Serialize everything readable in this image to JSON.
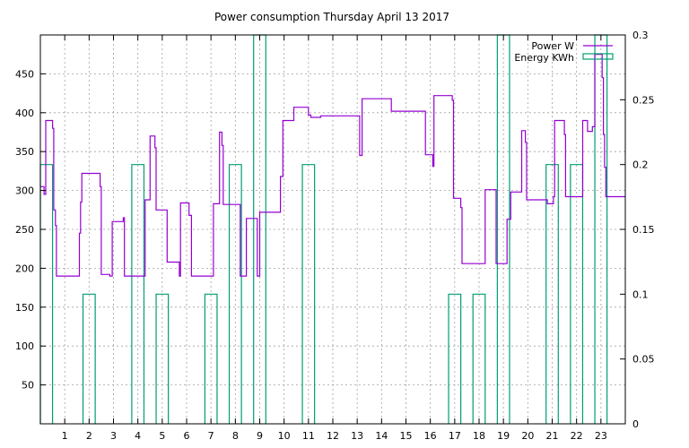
{
  "chart_data": {
    "type": "line",
    "title": "Power consumption Thursday April 13 2017",
    "xlabel": "",
    "ylabel": "",
    "x_ticks": [
      "1",
      "2",
      "3",
      "4",
      "5",
      "6",
      "7",
      "8",
      "9",
      "10",
      "11",
      "12",
      "13",
      "14",
      "15",
      "16",
      "17",
      "18",
      "19",
      "20",
      "21",
      "22",
      "23"
    ],
    "xlim": [
      0,
      24
    ],
    "ylim": [
      0,
      500
    ],
    "y_ticks": [
      50,
      100,
      150,
      200,
      250,
      300,
      350,
      400,
      450
    ],
    "y2lim": [
      0,
      0.3
    ],
    "y2_ticks": [
      "0",
      "0.05",
      "0.1",
      "0.15",
      "0.2",
      "0.25",
      "0.3"
    ],
    "grid": true,
    "legend_position": "top-right",
    "colors": {
      "power": "#9400d3",
      "energy": "#009e73"
    },
    "series": [
      {
        "name": "Power W",
        "axis": "left",
        "style": "line",
        "points": [
          [
            0.0,
            305
          ],
          [
            0.15,
            305
          ],
          [
            0.15,
            295
          ],
          [
            0.22,
            295
          ],
          [
            0.22,
            390
          ],
          [
            0.5,
            390
          ],
          [
            0.5,
            380
          ],
          [
            0.55,
            380
          ],
          [
            0.55,
            275
          ],
          [
            0.62,
            275
          ],
          [
            0.62,
            255
          ],
          [
            0.66,
            255
          ],
          [
            0.66,
            190
          ],
          [
            1.6,
            190
          ],
          [
            1.6,
            245
          ],
          [
            1.65,
            245
          ],
          [
            1.65,
            285
          ],
          [
            1.7,
            285
          ],
          [
            1.7,
            322
          ],
          [
            2.45,
            322
          ],
          [
            2.45,
            305
          ],
          [
            2.5,
            305
          ],
          [
            2.5,
            192
          ],
          [
            2.85,
            192
          ],
          [
            2.85,
            190
          ],
          [
            2.95,
            190
          ],
          [
            2.95,
            260
          ],
          [
            3.4,
            260
          ],
          [
            3.4,
            265
          ],
          [
            3.45,
            265
          ],
          [
            3.45,
            190
          ],
          [
            4.3,
            190
          ],
          [
            4.3,
            288
          ],
          [
            4.5,
            288
          ],
          [
            4.5,
            370
          ],
          [
            4.7,
            370
          ],
          [
            4.7,
            355
          ],
          [
            4.75,
            355
          ],
          [
            4.75,
            275
          ],
          [
            5.2,
            275
          ],
          [
            5.2,
            208
          ],
          [
            5.7,
            208
          ],
          [
            5.7,
            190
          ],
          [
            5.75,
            190
          ],
          [
            5.75,
            284
          ],
          [
            6.1,
            284
          ],
          [
            6.1,
            268
          ],
          [
            6.2,
            268
          ],
          [
            6.2,
            190
          ],
          [
            7.1,
            190
          ],
          [
            7.1,
            283
          ],
          [
            7.35,
            283
          ],
          [
            7.35,
            375
          ],
          [
            7.45,
            375
          ],
          [
            7.45,
            358
          ],
          [
            7.5,
            358
          ],
          [
            7.5,
            282
          ],
          [
            8.2,
            282
          ],
          [
            8.2,
            190
          ],
          [
            8.45,
            190
          ],
          [
            8.45,
            264
          ],
          [
            8.9,
            264
          ],
          [
            8.9,
            190
          ],
          [
            9.0,
            190
          ],
          [
            9.0,
            272
          ],
          [
            9.85,
            272
          ],
          [
            9.85,
            318
          ],
          [
            9.95,
            318
          ],
          [
            9.95,
            390
          ],
          [
            10.4,
            390
          ],
          [
            10.4,
            407
          ],
          [
            11.0,
            407
          ],
          [
            11.0,
            397
          ],
          [
            11.1,
            397
          ],
          [
            11.1,
            394
          ],
          [
            11.5,
            394
          ],
          [
            11.5,
            396
          ],
          [
            13.1,
            396
          ],
          [
            13.1,
            345
          ],
          [
            13.2,
            345
          ],
          [
            13.2,
            418
          ],
          [
            14.4,
            418
          ],
          [
            14.4,
            402
          ],
          [
            15.8,
            402
          ],
          [
            15.8,
            346
          ],
          [
            16.1,
            346
          ],
          [
            16.1,
            331
          ],
          [
            16.15,
            331
          ],
          [
            16.15,
            422
          ],
          [
            16.9,
            422
          ],
          [
            16.9,
            416
          ],
          [
            16.95,
            416
          ],
          [
            16.95,
            290
          ],
          [
            17.25,
            290
          ],
          [
            17.25,
            278
          ],
          [
            17.3,
            278
          ],
          [
            17.3,
            206
          ],
          [
            18.25,
            206
          ],
          [
            18.25,
            301
          ],
          [
            18.7,
            301
          ],
          [
            18.7,
            206
          ],
          [
            19.15,
            206
          ],
          [
            19.15,
            263
          ],
          [
            19.3,
            263
          ],
          [
            19.3,
            298
          ],
          [
            19.75,
            298
          ],
          [
            19.75,
            377
          ],
          [
            19.9,
            377
          ],
          [
            19.9,
            362
          ],
          [
            19.95,
            362
          ],
          [
            19.95,
            288
          ],
          [
            20.8,
            288
          ],
          [
            20.8,
            283
          ],
          [
            21.05,
            283
          ],
          [
            21.05,
            292
          ],
          [
            21.1,
            292
          ],
          [
            21.1,
            390
          ],
          [
            21.5,
            390
          ],
          [
            21.5,
            372
          ],
          [
            21.55,
            372
          ],
          [
            21.55,
            292
          ],
          [
            22.25,
            292
          ],
          [
            22.25,
            390
          ],
          [
            22.45,
            390
          ],
          [
            22.45,
            376
          ],
          [
            22.65,
            376
          ],
          [
            22.65,
            382
          ],
          [
            22.75,
            382
          ],
          [
            22.75,
            475
          ],
          [
            23.05,
            475
          ],
          [
            23.05,
            445
          ],
          [
            23.1,
            445
          ],
          [
            23.1,
            372
          ],
          [
            23.15,
            372
          ],
          [
            23.15,
            330
          ],
          [
            23.2,
            330
          ],
          [
            23.2,
            292
          ],
          [
            24.0,
            292
          ]
        ]
      },
      {
        "name": "Energy KWh",
        "axis": "right",
        "style": "impulses",
        "bars": [
          [
            0.0,
            0.2
          ],
          [
            1.75,
            0.1
          ],
          [
            3.75,
            0.2
          ],
          [
            4.75,
            0.1
          ],
          [
            6.75,
            0.1
          ],
          [
            7.75,
            0.2
          ],
          [
            8.75,
            0.3
          ],
          [
            10.75,
            0.2
          ],
          [
            16.75,
            0.1
          ],
          [
            17.75,
            0.1
          ],
          [
            18.75,
            0.3
          ],
          [
            20.75,
            0.2
          ],
          [
            21.75,
            0.2
          ],
          [
            22.75,
            0.3
          ]
        ]
      }
    ]
  }
}
